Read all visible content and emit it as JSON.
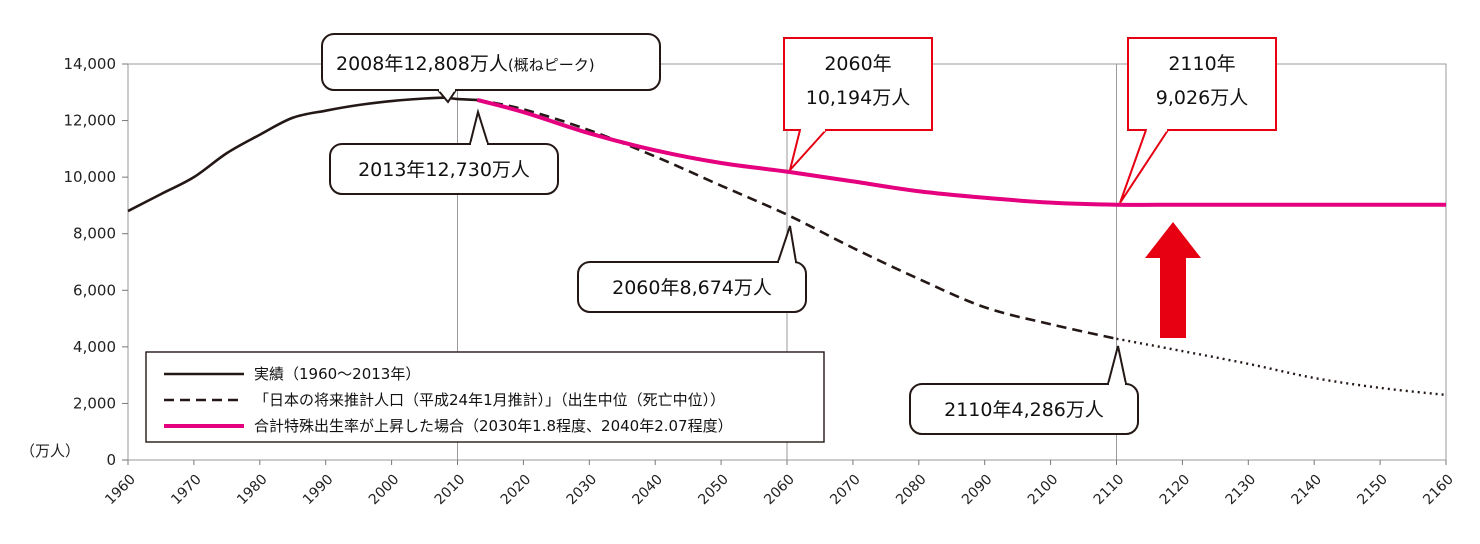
{
  "chart_data": {
    "type": "line",
    "ylabel": "（万人）",
    "ylim": [
      0,
      14000
    ],
    "xlim": [
      1960,
      2160
    ],
    "y_ticks": [
      "14,000",
      "12,000",
      "10,000",
      "8,000",
      "6,000",
      "4,000",
      "2,000",
      "0"
    ],
    "y_tick_values": [
      14000,
      12000,
      10000,
      8000,
      6000,
      4000,
      2000,
      0
    ],
    "x_ticks": [
      "1960",
      "1970",
      "1980",
      "1990",
      "2000",
      "2010",
      "2020",
      "2030",
      "2040",
      "2050",
      "2060",
      "2070",
      "2080",
      "2090",
      "2100",
      "2110",
      "2120",
      "2130",
      "2140",
      "2150",
      "2160"
    ],
    "x_tick_values": [
      1960,
      1970,
      1980,
      1990,
      2000,
      2010,
      2020,
      2030,
      2040,
      2050,
      2060,
      2070,
      2080,
      2090,
      2100,
      2110,
      2120,
      2130,
      2140,
      2150,
      2160
    ],
    "grid": "vertical",
    "legend_position": "bottom-left",
    "series": [
      {
        "name": "実績（1960〜2013年）",
        "style": "solid",
        "color": "#231815",
        "x": [
          1960,
          1965,
          1970,
          1975,
          1980,
          1985,
          1990,
          1995,
          2000,
          2005,
          2008,
          2010,
          2013
        ],
        "y": [
          8800,
          9400,
          10000,
          10850,
          11500,
          12100,
          12350,
          12550,
          12690,
          12780,
          12808,
          12760,
          12730
        ]
      },
      {
        "name": "「日本の将来推計人口（平成24年1月推計）」（出生中位（死亡中位））",
        "style": "dashed",
        "color": "#231815",
        "x": [
          2013,
          2020,
          2030,
          2040,
          2050,
          2060,
          2070,
          2080,
          2090,
          2100,
          2110
        ],
        "y": [
          12730,
          12400,
          11660,
          10730,
          9700,
          8674,
          7500,
          6400,
          5400,
          4800,
          4286
        ]
      },
      {
        "name": "",
        "style": "dotted",
        "color": "#231815",
        "x": [
          2110,
          2120,
          2130,
          2140,
          2150,
          2160
        ],
        "y": [
          4286,
          3850,
          3400,
          2900,
          2550,
          2300
        ]
      },
      {
        "name": "合計特殊出生率が上昇した場合（2030年1.8程度、2040年2.07程度）",
        "style": "solid",
        "color": "#e4007f",
        "x": [
          2013,
          2020,
          2030,
          2040,
          2050,
          2060,
          2070,
          2080,
          2090,
          2100,
          2110,
          2120,
          2130,
          2140,
          2150,
          2160
        ],
        "y": [
          12730,
          12300,
          11550,
          10950,
          10500,
          10194,
          9850,
          9500,
          9270,
          9100,
          9026,
          9026,
          9026,
          9026,
          9026,
          9026
        ]
      }
    ],
    "annotations": [
      {
        "lines": [
          "2008年12,808万人",
          "(概ねピーク)"
        ],
        "style": "rounded",
        "x": 2008,
        "y": 12808
      },
      {
        "lines": [
          "2013年12,730万人"
        ],
        "style": "rounded",
        "x": 2013,
        "y": 12730
      },
      {
        "lines": [
          "2060年",
          "10,194万人"
        ],
        "style": "red-box",
        "x": 2060,
        "y": 10194
      },
      {
        "lines": [
          "2110年",
          "9,026万人"
        ],
        "style": "red-box",
        "x": 2110,
        "y": 9026
      },
      {
        "lines": [
          "2060年8,674万人"
        ],
        "style": "rounded",
        "x": 2060,
        "y": 8674
      },
      {
        "lines": [
          "2110年4,286万人"
        ],
        "style": "rounded",
        "x": 2110,
        "y": 4286
      }
    ],
    "up_arrow_color": "#e60012"
  }
}
